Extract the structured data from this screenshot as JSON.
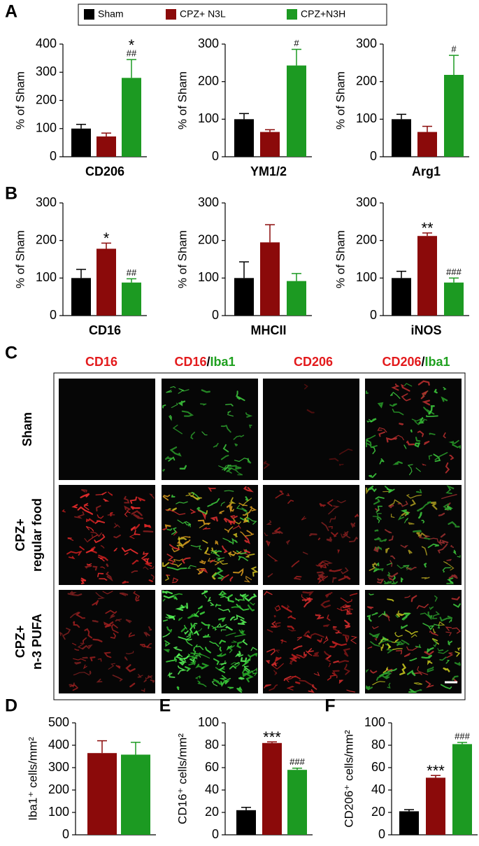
{
  "panels": [
    "A",
    "B",
    "C",
    "D",
    "E",
    "F"
  ],
  "legend": [
    {
      "name": "Sham",
      "color": "#000000"
    },
    {
      "name": "CPZ+ N3L",
      "color": "#8b0a0a"
    },
    {
      "name": "CPZ+N3H",
      "color": "#1c9a22"
    }
  ],
  "chart_data": [
    {
      "type": "bar",
      "ylabel": "% of Sham",
      "xlabel": "CD206",
      "ylim": [
        0,
        400
      ],
      "yticks": [
        0,
        100,
        200,
        300,
        400
      ],
      "values": [
        100,
        72,
        280
      ],
      "errors": [
        15,
        12,
        65
      ],
      "colors": [
        "#000000",
        "#8b0a0a",
        "#1c9a22"
      ],
      "annotations": [
        null,
        null,
        [
          "*",
          "##"
        ]
      ]
    },
    {
      "type": "bar",
      "ylabel": "% of Sham",
      "xlabel": "YM1/2",
      "ylim": [
        0,
        300
      ],
      "yticks": [
        0,
        100,
        200,
        300
      ],
      "values": [
        100,
        66,
        243
      ],
      "errors": [
        15,
        6,
        43
      ],
      "colors": [
        "#000000",
        "#8b0a0a",
        "#1c9a22"
      ],
      "annotations": [
        null,
        null,
        [
          "#"
        ]
      ]
    },
    {
      "type": "bar",
      "ylabel": "% of Sham",
      "xlabel": "Arg1",
      "ylim": [
        0,
        300
      ],
      "yticks": [
        0,
        100,
        200,
        300
      ],
      "values": [
        100,
        66,
        218
      ],
      "errors": [
        13,
        15,
        52
      ],
      "colors": [
        "#000000",
        "#8b0a0a",
        "#1c9a22"
      ],
      "annotations": [
        null,
        null,
        [
          "#"
        ]
      ]
    },
    {
      "type": "bar",
      "ylabel": "% of Sham",
      "xlabel": "CD16",
      "ylim": [
        0,
        300
      ],
      "yticks": [
        0,
        100,
        200,
        300
      ],
      "values": [
        100,
        178,
        88
      ],
      "errors": [
        23,
        15,
        10
      ],
      "colors": [
        "#000000",
        "#8b0a0a",
        "#1c9a22"
      ],
      "annotations": [
        null,
        [
          "*"
        ],
        [
          "##"
        ]
      ]
    },
    {
      "type": "bar",
      "ylabel": "% of Sham",
      "xlabel": "MHCII",
      "ylim": [
        0,
        300
      ],
      "yticks": [
        0,
        100,
        200,
        300
      ],
      "values": [
        100,
        195,
        92
      ],
      "errors": [
        43,
        47,
        20
      ],
      "colors": [
        "#000000",
        "#8b0a0a",
        "#1c9a22"
      ],
      "annotations": [
        null,
        null,
        null
      ]
    },
    {
      "type": "bar",
      "ylabel": "% of Sham",
      "xlabel": "iNOS",
      "ylim": [
        0,
        300
      ],
      "yticks": [
        0,
        100,
        200,
        300
      ],
      "values": [
        100,
        212,
        88
      ],
      "errors": [
        18,
        8,
        12
      ],
      "colors": [
        "#000000",
        "#8b0a0a",
        "#1c9a22"
      ],
      "annotations": [
        null,
        [
          "**"
        ],
        [
          "###"
        ]
      ]
    },
    {
      "type": "bar",
      "ylabel": "Iba1⁺ cells/mm²",
      "ylim": [
        0,
        500
      ],
      "yticks": [
        0,
        100,
        200,
        300,
        400,
        500
      ],
      "values": [
        365,
        358
      ],
      "errors": [
        55,
        55
      ],
      "colors": [
        "#8b0a0a",
        "#1c9a22"
      ],
      "annotations": [
        null,
        null
      ]
    },
    {
      "type": "bar",
      "ylabel": "CD16⁺ cells/mm²",
      "ylim": [
        0,
        100
      ],
      "yticks": [
        0,
        20,
        40,
        60,
        80,
        100
      ],
      "values": [
        22,
        82,
        58
      ],
      "errors": [
        2.5,
        1,
        1.5
      ],
      "colors": [
        "#000000",
        "#8b0a0a",
        "#1c9a22"
      ],
      "annotations": [
        null,
        [
          "***"
        ],
        [
          "###"
        ]
      ]
    },
    {
      "type": "bar",
      "ylabel": "CD206⁺ cells/mm²",
      "ylim": [
        0,
        100
      ],
      "yticks": [
        0,
        20,
        40,
        60,
        80,
        100
      ],
      "values": [
        21,
        51,
        81
      ],
      "errors": [
        1.5,
        2,
        1.5
      ],
      "colors": [
        "#000000",
        "#8b0a0a",
        "#1c9a22"
      ],
      "annotations": [
        null,
        [
          "***"
        ],
        [
          "###"
        ]
      ]
    }
  ],
  "images": {
    "columns": [
      [
        {
          "text": "CD16",
          "color": "#e31a1c"
        }
      ],
      [
        {
          "text": "CD16",
          "color": "#e31a1c"
        },
        {
          "text": "/",
          "color": "#000000"
        },
        {
          "text": "Iba1",
          "color": "#1fa01f"
        }
      ],
      [
        {
          "text": "CD206",
          "color": "#e31a1c"
        }
      ],
      [
        {
          "text": "CD206",
          "color": "#e31a1c"
        },
        {
          "text": "/",
          "color": "#000000"
        },
        {
          "text": "Iba1",
          "color": "#1fa01f"
        }
      ]
    ],
    "rows": [
      [
        "Sham"
      ],
      [
        "CPZ+",
        "regular food"
      ],
      [
        "CPZ+",
        "n-3 PUFA"
      ]
    ]
  }
}
